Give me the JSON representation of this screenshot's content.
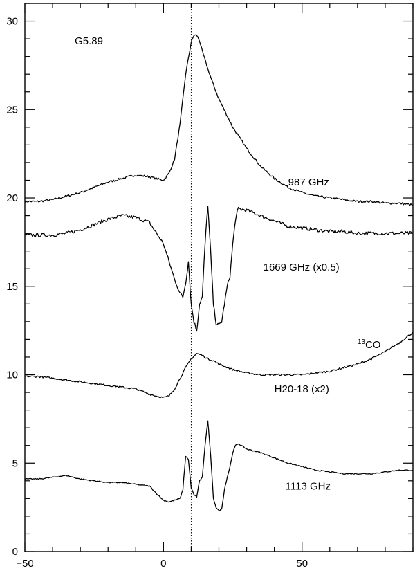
{
  "chart_data": {
    "type": "line",
    "title": "",
    "xlabel": "",
    "ylabel": "",
    "xlim": [
      -50,
      90
    ],
    "ylim": [
      0,
      31
    ],
    "x_ticks": [
      -50,
      0,
      50
    ],
    "y_ticks": [
      0,
      5,
      10,
      15,
      20,
      25,
      30
    ],
    "grid": false,
    "legend": "none",
    "reference_line": {
      "x": 10,
      "style": "dotted"
    },
    "annotations": [
      {
        "id": "source",
        "text": "G5.89",
        "x": -32,
        "y": 28.7
      },
      {
        "id": "lbl-987",
        "text": "987 GHz",
        "x": 45,
        "y": 20.7
      },
      {
        "id": "lbl-1669",
        "text": "1669 GHz (x0.5)",
        "x": 36,
        "y": 15.9
      },
      {
        "id": "lbl-h2o18",
        "text": "H20-18 (x2)",
        "x": 40,
        "y": 9.0
      },
      {
        "id": "lbl-1113",
        "text": "1113 GHz",
        "x": 44,
        "y": 3.5
      }
    ],
    "co_label": {
      "sup": "13",
      "text": "CO",
      "x": 70,
      "y": 11.5
    },
    "series": [
      {
        "x": [
          -50,
          -45,
          -40,
          -35,
          -30,
          -25,
          -20,
          -15,
          -10,
          -5,
          0,
          2,
          4,
          6,
          8,
          10,
          11,
          12,
          13,
          14,
          16,
          18,
          20,
          25,
          30,
          35,
          40,
          45,
          50,
          55,
          60,
          65,
          70,
          75,
          80,
          85,
          90
        ],
        "y": [
          19.8,
          19.8,
          19.9,
          20.1,
          20.3,
          20.6,
          20.9,
          21.1,
          21.3,
          21.2,
          21.0,
          21.4,
          22.2,
          24.2,
          27.0,
          28.8,
          29.2,
          29.2,
          28.9,
          28.3,
          27.3,
          26.4,
          25.6,
          24.0,
          22.8,
          21.8,
          21.1,
          20.6,
          20.3,
          20.1,
          20.0,
          19.9,
          19.8,
          19.8,
          19.7,
          19.7,
          19.6
        ]
      },
      {
        "x": [
          -50,
          -45,
          -40,
          -35,
          -30,
          -25,
          -20,
          -15,
          -10,
          -5,
          0,
          2,
          4,
          6,
          7,
          8,
          9,
          10,
          11,
          12,
          13,
          14,
          15,
          16,
          17,
          18,
          19,
          20,
          21,
          22,
          23,
          24,
          25,
          26,
          27,
          30,
          35,
          40,
          45,
          50,
          55,
          60,
          65,
          70,
          75,
          80,
          85,
          90
        ],
        "y": [
          17.9,
          17.9,
          17.9,
          18.0,
          18.2,
          18.5,
          18.8,
          19.0,
          18.9,
          18.6,
          17.4,
          16.4,
          15.4,
          14.6,
          14.4,
          15.2,
          16.4,
          14.0,
          13.0,
          12.5,
          14.0,
          14.4,
          17.4,
          19.6,
          17.0,
          14.0,
          12.9,
          12.8,
          13.0,
          14.0,
          15.0,
          15.6,
          17.4,
          18.8,
          19.4,
          19.3,
          19.0,
          18.7,
          18.4,
          18.3,
          18.2,
          18.1,
          18.1,
          18.0,
          18.0,
          18.0,
          18.0,
          18.0
        ]
      },
      {
        "x": [
          -50,
          -45,
          -40,
          -35,
          -30,
          -25,
          -20,
          -15,
          -10,
          -5,
          0,
          2,
          4,
          6,
          8,
          10,
          12,
          14,
          16,
          18,
          20,
          25,
          30,
          35,
          40,
          45,
          50,
          55,
          60,
          65,
          70,
          75,
          80,
          85,
          90
        ],
        "y": [
          9.9,
          9.9,
          9.8,
          9.7,
          9.6,
          9.5,
          9.4,
          9.3,
          9.2,
          8.9,
          8.7,
          8.8,
          9.2,
          9.8,
          10.4,
          10.9,
          11.2,
          11.1,
          10.9,
          10.8,
          10.6,
          10.3,
          10.1,
          10.0,
          10.0,
          10.0,
          10.0,
          10.1,
          10.2,
          10.4,
          10.6,
          10.9,
          11.3,
          11.8,
          12.4
        ]
      },
      {
        "x": [
          -50,
          -45,
          -40,
          -35,
          -30,
          -25,
          -20,
          -15,
          -10,
          -5,
          -2,
          0,
          2,
          4,
          6,
          7,
          8,
          9,
          10,
          11,
          12,
          13,
          14,
          15,
          16,
          17,
          18,
          19,
          20,
          21,
          22,
          23,
          24,
          25,
          26,
          27,
          30,
          35,
          40,
          45,
          50,
          55,
          60,
          65,
          70,
          75,
          80,
          85,
          90
        ],
        "y": [
          4.1,
          4.1,
          4.2,
          4.3,
          4.1,
          4.0,
          3.9,
          3.9,
          3.8,
          3.7,
          3.2,
          2.9,
          2.8,
          2.9,
          3.0,
          3.5,
          5.4,
          5.2,
          3.6,
          3.2,
          3.1,
          4.0,
          4.2,
          6.0,
          7.4,
          5.5,
          3.0,
          2.5,
          2.3,
          2.4,
          3.5,
          4.2,
          4.8,
          5.6,
          6.0,
          6.1,
          5.8,
          5.6,
          5.3,
          5.0,
          4.8,
          4.6,
          4.5,
          4.4,
          4.4,
          4.4,
          4.5,
          4.6,
          4.6
        ]
      }
    ]
  }
}
